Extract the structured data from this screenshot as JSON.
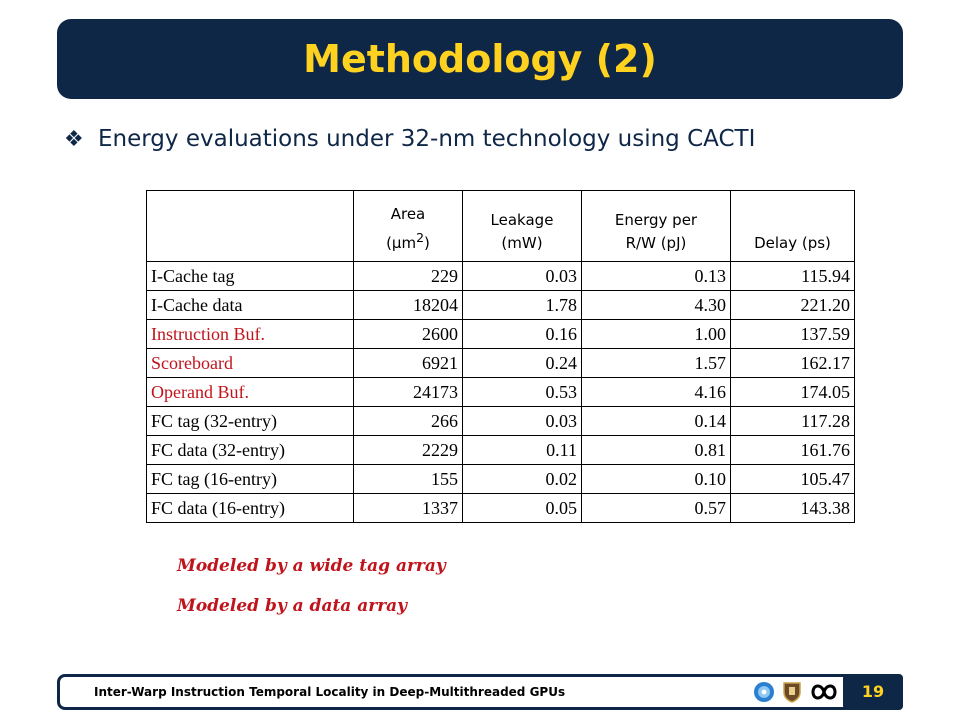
{
  "slide": {
    "title": "Methodology (2)",
    "bullet": "Energy evaluations under 32-nm technology using CACTI",
    "bullet_icon": "diamond-bullet-icon",
    "page_number": "19",
    "footer_text": "Inter-Warp Instruction Temporal Locality in Deep-Multithreaded GPUs"
  },
  "table": {
    "headers": [
      "",
      "Area\n(µm²)",
      "Leakage\n(mW)",
      "Energy per\nR/W (pJ)",
      "Delay (ps)"
    ],
    "rows": [
      {
        "label": "I-Cache tag",
        "area": "229",
        "leakage": "0.03",
        "energy": "0.13",
        "delay": "115.94",
        "highlight": false
      },
      {
        "label": "I-Cache data",
        "area": "18204",
        "leakage": "1.78",
        "energy": "4.30",
        "delay": "221.20",
        "highlight": false
      },
      {
        "label": "Instruction Buf.",
        "area": "2600",
        "leakage": "0.16",
        "energy": "1.00",
        "delay": "137.59",
        "highlight": true
      },
      {
        "label": "Scoreboard",
        "area": "6921",
        "leakage": "0.24",
        "energy": "1.57",
        "delay": "162.17",
        "highlight": true
      },
      {
        "label": "Operand Buf.",
        "area": "24173",
        "leakage": "0.53",
        "energy": "4.16",
        "delay": "174.05",
        "highlight": true
      },
      {
        "label": "FC tag (32-entry)",
        "area": "266",
        "leakage": "0.03",
        "energy": "0.14",
        "delay": "117.28",
        "highlight": false
      },
      {
        "label": "FC data (32-entry)",
        "area": "2229",
        "leakage": "0.11",
        "energy": "0.81",
        "delay": "161.76",
        "highlight": false
      },
      {
        "label": "FC tag (16-entry)",
        "area": "155",
        "leakage": "0.02",
        "energy": "0.10",
        "delay": "105.47",
        "highlight": false
      },
      {
        "label": "FC data (16-entry)",
        "area": "1337",
        "leakage": "0.05",
        "energy": "0.57",
        "delay": "143.38",
        "highlight": false
      }
    ]
  },
  "notes": {
    "note1": "Modeled by a wide tag array",
    "note2": "Modeled by a data array"
  },
  "colors": {
    "navy": "#0f2747",
    "yellow": "#ffd21f",
    "red": "#c0141c"
  }
}
